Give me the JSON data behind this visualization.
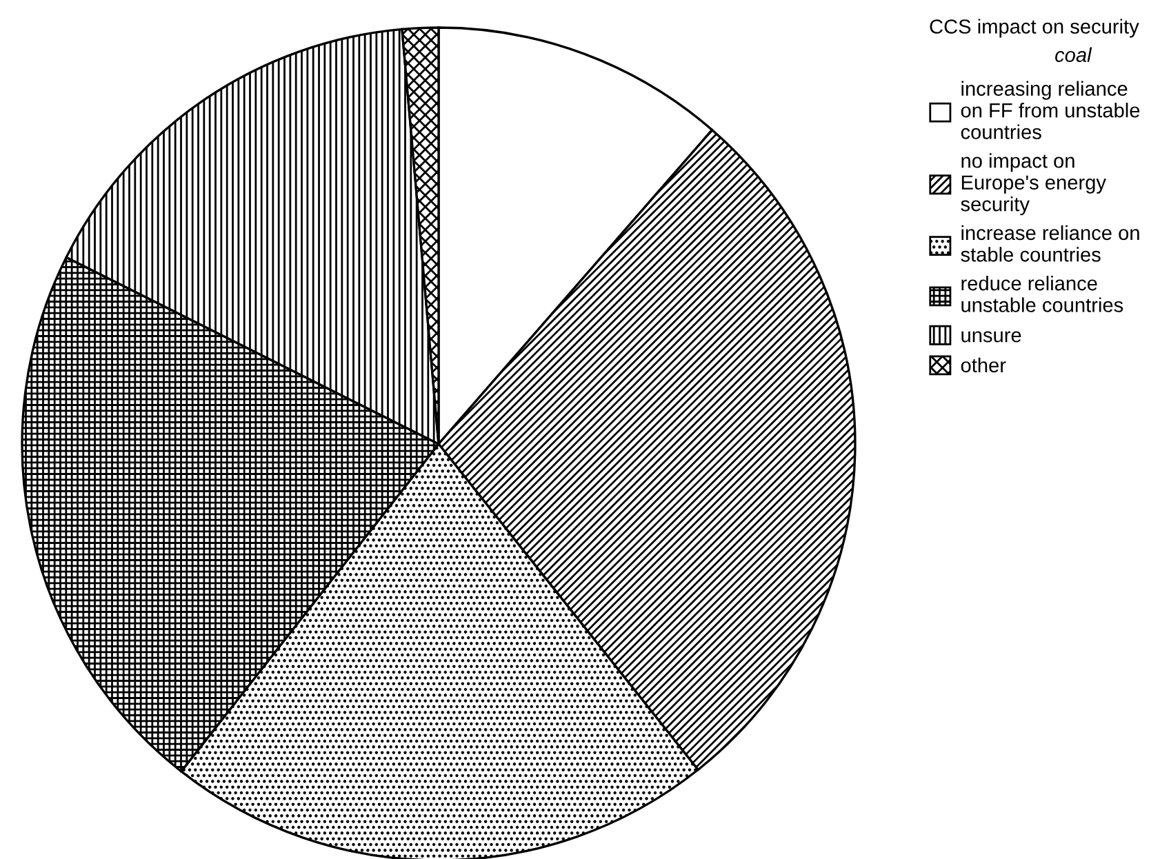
{
  "chart_data": {
    "type": "pie",
    "title": "CCS impact on security",
    "subtitle": "coal",
    "categories": [
      "increasing reliance\non FF from unstable\ncountries",
      "no impact on\nEurope's energy\nsecurity",
      "increase reliance on\nstable countries",
      "reduce reliance\nunstable countries",
      "unsure",
      "other"
    ],
    "values": [
      11.4,
      27.9,
      21.3,
      21.8,
      16.2,
      1.4
    ],
    "colors": [
      "#ffffff",
      "#000000",
      "#000000",
      "#000000",
      "#000000",
      "#000000"
    ],
    "legend": "top right"
  }
}
